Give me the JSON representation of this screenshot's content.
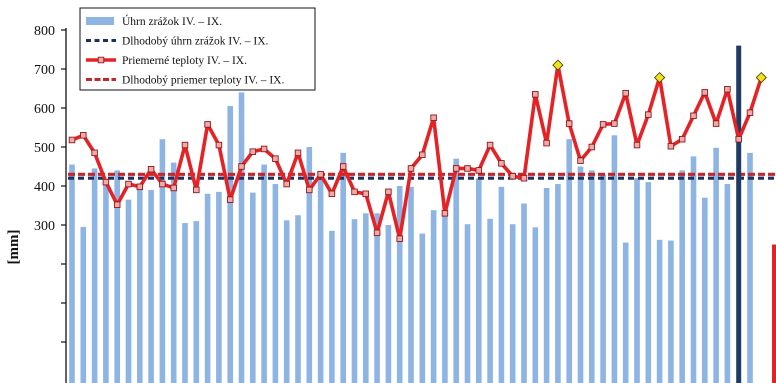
{
  "chart_data": {
    "type": "bar+line",
    "ylabel": "[mm]",
    "y_ticks": [
      300,
      400,
      500,
      600,
      700,
      800
    ],
    "ylim_visible": [
      0,
      800
    ],
    "legend_position": "top-left",
    "grid": false,
    "series": [
      {
        "name": "Úhrn zrážok IV. – IX.",
        "kind": "bar",
        "color": "#8eb4e3",
        "values": [
          455,
          295,
          445,
          415,
          440,
          365,
          395,
          390,
          520,
          460,
          305,
          310,
          380,
          385,
          605,
          640,
          383,
          455,
          405,
          312,
          325,
          500,
          425,
          285,
          485,
          315,
          330,
          330,
          300,
          400,
          398,
          278,
          338,
          338,
          470,
          302,
          420,
          316,
          398,
          302,
          355,
          294,
          395,
          405,
          520,
          450,
          440,
          430,
          530,
          255,
          420,
          410,
          262,
          260,
          440,
          476,
          370,
          498,
          405,
          0,
          485,
          0
        ]
      },
      {
        "name": "Dlhodobý úhrn zrážok IV. – IX.",
        "kind": "hline",
        "color": "#1f2f5e",
        "value": 420
      },
      {
        "name": "Priemerné teploty IV. – IX.",
        "kind": "line",
        "color": "#e52226",
        "values": [
          518,
          530,
          485,
          410,
          352,
          405,
          398,
          443,
          405,
          395,
          505,
          390,
          558,
          505,
          365,
          450,
          488,
          495,
          470,
          405,
          485,
          390,
          430,
          380,
          450,
          385,
          380,
          280,
          385,
          265,
          445,
          480,
          575,
          330,
          445,
          445,
          440,
          505,
          458,
          425,
          420,
          635,
          510,
          710,
          560,
          465,
          500,
          558,
          560,
          638,
          505,
          583,
          678,
          502,
          520,
          580,
          640,
          560,
          648,
          520,
          588,
          678
        ]
      },
      {
        "name": "Dlhodobý priemer teploty IV. – IX.",
        "kind": "hline",
        "color": "#c0282d",
        "value": 430
      }
    ],
    "highlight_points": [
      {
        "series": "Priemerné teploty IV. – IX.",
        "index": 43,
        "value": 710
      },
      {
        "series": "Priemerné teploty IV. – IX.",
        "index": 52,
        "value": 678
      },
      {
        "series": "Priemerné teploty IV. – IX.",
        "index": 61,
        "value": 678
      }
    ],
    "vertical_marker": {
      "index": 59,
      "color": "#1f3b63",
      "value_top": 760
    },
    "edge_bar": {
      "color": "#e52226",
      "value": 250
    }
  }
}
